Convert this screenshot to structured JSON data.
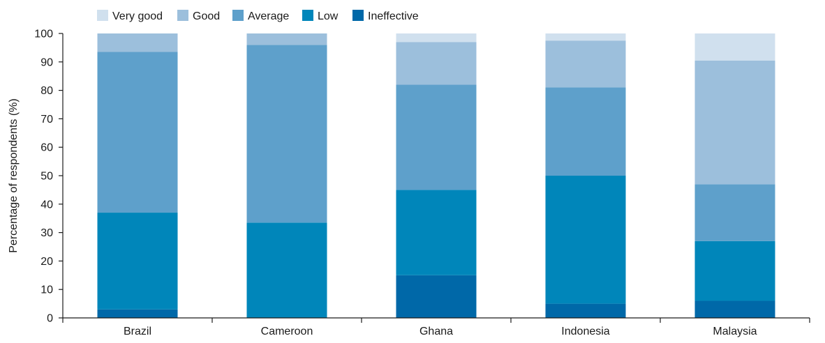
{
  "chart_data": {
    "type": "bar",
    "stacked": true,
    "categories": [
      "Brazil",
      "Cameroon",
      "Ghana",
      "Indonesia",
      "Malaysia"
    ],
    "series": [
      {
        "name": "Ineffective",
        "color": "#0068a8",
        "values": [
          3,
          0,
          15,
          5,
          6
        ]
      },
      {
        "name": "Low",
        "color": "#0086ba",
        "values": [
          34,
          33.5,
          30,
          45,
          21
        ]
      },
      {
        "name": "Average",
        "color": "#5ea0cb",
        "values": [
          56.5,
          62.5,
          37,
          31,
          20
        ]
      },
      {
        "name": "Good",
        "color": "#9cbfdc",
        "values": [
          6.5,
          4,
          15,
          16.5,
          43.5
        ]
      },
      {
        "name": "Very good",
        "color": "#d0e0ee",
        "values": [
          0,
          0,
          3,
          2.5,
          9.5
        ]
      }
    ],
    "legend_order": [
      "Very good",
      "Good",
      "Average",
      "Low",
      "Ineffective"
    ],
    "xlabel": "",
    "ylabel": "Percentage of respondents (%)",
    "ylim": [
      0,
      100
    ],
    "yticks": [
      0,
      10,
      20,
      30,
      40,
      50,
      60,
      70,
      80,
      90,
      100
    ],
    "grid": false,
    "legend_position": "top-left"
  }
}
